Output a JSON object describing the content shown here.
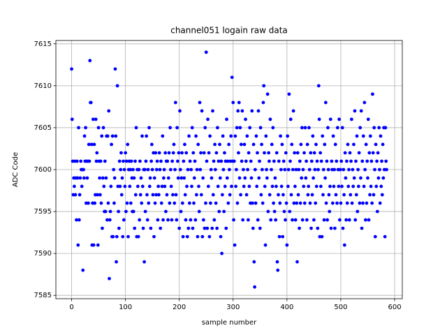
{
  "chart_data": {
    "type": "scatter",
    "title": "channel051 logain raw data",
    "x_label": "sample number",
    "y_label": "ADC Code",
    "color": "#0000ff",
    "grid": true,
    "xlim": [
      -29.25,
      614.25
    ],
    "ylim": [
      7584.6,
      7615.4
    ],
    "xticks": [
      0,
      100,
      200,
      300,
      400,
      500,
      600
    ],
    "yticks": [
      7585,
      7590,
      7595,
      7600,
      7605,
      7610,
      7615
    ],
    "x": [
      0,
      1,
      2,
      3,
      4,
      5,
      6,
      7,
      8,
      9,
      10,
      11,
      12,
      13,
      14,
      15,
      16,
      17,
      18,
      19,
      20,
      21,
      22,
      23,
      24,
      25,
      26,
      27,
      28,
      29,
      30,
      31,
      32,
      33,
      34,
      35,
      36,
      37,
      38,
      39,
      40,
      41,
      42,
      43,
      44,
      45,
      46,
      47,
      48,
      49,
      50,
      51,
      52,
      53,
      54,
      55,
      56,
      57,
      58,
      59,
      60,
      61,
      62,
      63,
      64,
      65,
      66,
      67,
      68,
      69,
      70,
      71,
      72,
      73,
      74,
      75,
      76,
      77,
      78,
      79,
      80,
      81,
      82,
      83,
      84,
      85,
      86,
      87,
      88,
      89,
      90,
      91,
      92,
      93,
      94,
      95,
      96,
      97,
      98,
      99,
      100,
      101,
      102,
      103,
      104,
      105,
      106,
      107,
      108,
      109,
      110,
      111,
      112,
      113,
      114,
      115,
      116,
      117,
      118,
      119,
      120,
      121,
      122,
      123,
      124,
      125,
      126,
      127,
      128,
      129,
      130,
      131,
      132,
      133,
      134,
      135,
      136,
      137,
      138,
      139,
      140,
      141,
      142,
      143,
      144,
      145,
      146,
      147,
      148,
      149,
      150,
      151,
      152,
      153,
      154,
      155,
      156,
      157,
      158,
      159,
      160,
      161,
      162,
      163,
      164,
      165,
      166,
      167,
      168,
      169,
      170,
      171,
      172,
      173,
      174,
      175,
      176,
      177,
      178,
      179,
      180,
      181,
      182,
      183,
      184,
      185,
      186,
      187,
      188,
      189,
      190,
      191,
      192,
      193,
      194,
      195,
      196,
      197,
      198,
      199,
      200,
      201,
      202,
      203,
      204,
      205,
      206,
      207,
      208,
      209,
      210,
      211,
      212,
      213,
      214,
      215,
      216,
      217,
      218,
      219,
      220,
      221,
      222,
      223,
      224,
      225,
      226,
      227,
      228,
      229,
      230,
      231,
      232,
      233,
      234,
      235,
      236,
      237,
      238,
      239,
      240,
      241,
      242,
      243,
      244,
      245,
      246,
      247,
      248,
      249,
      250,
      251,
      252,
      253,
      254,
      255,
      256,
      257,
      258,
      259,
      260,
      261,
      262,
      263,
      264,
      265,
      266,
      267,
      268,
      269,
      270,
      271,
      272,
      273,
      274,
      275,
      276,
      277,
      278,
      279,
      280,
      281,
      282,
      283,
      284,
      285,
      286,
      287,
      288,
      289,
      290,
      291,
      292,
      293,
      294,
      295,
      296,
      297,
      298,
      299,
      300,
      301,
      302,
      303,
      304,
      305,
      306,
      307,
      308,
      309,
      310,
      311,
      312,
      313,
      314,
      315,
      316,
      317,
      318,
      319,
      320,
      321,
      322,
      323,
      324,
      325,
      326,
      327,
      328,
      329,
      330,
      331,
      332,
      333,
      334,
      335,
      336,
      337,
      338,
      339,
      340,
      341,
      342,
      343,
      344,
      345,
      346,
      347,
      348,
      349,
      350,
      351,
      352,
      353,
      354,
      355,
      356,
      357,
      358,
      359,
      360,
      361,
      362,
      363,
      364,
      365,
      366,
      367,
      368,
      369,
      370,
      371,
      372,
      373,
      374,
      375,
      376,
      377,
      378,
      379,
      380,
      381,
      382,
      383,
      384,
      385,
      386,
      387,
      388,
      389,
      390,
      391,
      392,
      393,
      394,
      395,
      396,
      397,
      398,
      399,
      400,
      401,
      402,
      403,
      404,
      405,
      406,
      407,
      408,
      409,
      410,
      411,
      412,
      413,
      414,
      415,
      416,
      417,
      418,
      419,
      420,
      421,
      422,
      423,
      424,
      425,
      426,
      427,
      428,
      429,
      430,
      431,
      432,
      433,
      434,
      435,
      436,
      437,
      438,
      439,
      440,
      441,
      442,
      443,
      444,
      445,
      446,
      447,
      448,
      449,
      450,
      451,
      452,
      453,
      454,
      455,
      456,
      457,
      458,
      459,
      460,
      461,
      462,
      463,
      464,
      465,
      466,
      467,
      468,
      469,
      470,
      471,
      472,
      473,
      474,
      475,
      476,
      477,
      478,
      479,
      480,
      481,
      482,
      483,
      484,
      485,
      486,
      487,
      488,
      489,
      490,
      491,
      492,
      493,
      494,
      495,
      496,
      497,
      498,
      499,
      500,
      501,
      502,
      503,
      504,
      505,
      506,
      507,
      508,
      509,
      510,
      511,
      512,
      513,
      514,
      515,
      516,
      517,
      518,
      519,
      520,
      521,
      522,
      523,
      524,
      525,
      526,
      527,
      528,
      529,
      530,
      531,
      532,
      533,
      534,
      535,
      536,
      537,
      538,
      539,
      540,
      541,
      542,
      543,
      544,
      545,
      546,
      547,
      548,
      549,
      550,
      551,
      552,
      553,
      554,
      555,
      556,
      557,
      558,
      559,
      560,
      561,
      562,
      563,
      564,
      565,
      566,
      567,
      568,
      569,
      570,
      571,
      572,
      573,
      574,
      575,
      576,
      577,
      578,
      579,
      580,
      581,
      582,
      583,
      584,
      585
    ],
    "values": [
      7612,
      7606,
      7601,
      7597,
      7599,
      7598,
      7601,
      7597,
      7599,
      7594,
      7601,
      7599,
      7591,
      7605,
      7594,
      7597,
      7599,
      7601,
      7600,
      7598,
      7600,
      7588,
      7600,
      7599,
      7604,
      7601,
      7605,
      7596,
      7601,
      7599,
      7601,
      7596,
      7603,
      7601,
      7613,
      7608,
      7608,
      7603,
      7591,
      7596,
      7606,
      7591,
      7603,
      7596,
      7597,
      7606,
      7601,
      7602,
      7597,
      7591,
      7605,
      7601,
      7599,
      7597,
      7601,
      7596,
      7604,
      7593,
      7599,
      7605,
      7598,
      7595,
      7601,
      7595,
      7599,
      7604,
      7594,
      7604,
      7596,
      7607,
      7587,
      7594,
      7595,
      7598,
      7603,
      7592,
      7604,
      7592,
      7600,
      7596,
      7599,
      7612,
      7604,
      7589,
      7592,
      7610,
      7598,
      7595,
      7593,
      7601,
      7598,
      7600,
      7602,
      7597,
      7599,
      7592,
      7601,
      7594,
      7600,
      7598,
      7602,
      7595,
      7601,
      7596,
      7603,
      7592,
      7600,
      7601,
      7598,
      7600,
      7596,
      7601,
      7599,
      7595,
      7600,
      7595,
      7599,
      7593,
      7601,
      7597,
      7605,
      7592,
      7600,
      7598,
      7592,
      7600,
      7594,
      7601,
      7597,
      7599,
      7596,
      7604,
      7598,
      7593,
      7600,
      7589,
      7600,
      7595,
      7601,
      7604,
      7597,
      7594,
      7600,
      7596,
      7605,
      7598,
      7599,
      7593,
      7601,
      7603,
      7600,
      7597,
      7602,
      7592,
      7599,
      7596,
      7602,
      7597,
      7600,
      7601,
      7594,
      7598,
      7597,
      7602,
      7600,
      7593,
      7601,
      7596,
      7598,
      7604,
      7594,
      7599,
      7600,
      7598,
      7602,
      7595,
      7601,
      7597,
      7601,
      7594,
      7599,
      7602,
      7596,
      7605,
      7600,
      7598,
      7594,
      7601,
      7597,
      7602,
      7603,
      7596,
      7600,
      7608,
      7597,
      7594,
      7605,
      7601,
      7599,
      7602,
      7593,
      7607,
      7600,
      7595,
      7599,
      7602,
      7596,
      7592,
      7601,
      7599,
      7603,
      7597,
      7594,
      7602,
      7598,
      7592,
      7600,
      7593,
      7604,
      7596,
      7601,
      7594,
      7600,
      7598,
      7605,
      7593,
      7602,
      7596,
      7599,
      7601,
      7594,
      7604,
      7597,
      7600,
      7592,
      7603,
      7598,
      7595,
      7608,
      7600,
      7602,
      7597,
      7607,
      7592,
      7599,
      7594,
      7602,
      7593,
      7605,
      7596,
      7614,
      7601,
      7593,
      7606,
      7598,
      7602,
      7592,
      7604,
      7596,
      7600,
      7599,
      7593,
      7607,
      7597,
      7601,
      7594,
      7603,
      7600,
      7596,
      7602,
      7593,
      7605,
      7598,
      7601,
      7595,
      7603,
      7599,
      7592,
      7601,
      7590,
      7597,
      7604,
      7600,
      7595,
      7602,
      7598,
      7601,
      7593,
      7606,
      7599,
      7601,
      7596,
      7603,
      7600,
      7597,
      7601,
      7604,
      7598,
      7611,
      7601,
      7608,
      7594,
      7601,
      7591,
      7604,
      7598,
      7600,
      7605,
      7596,
      7607,
      7602,
      7608,
      7599,
      7605,
      7597,
      7603,
      7601,
      7607,
      7594,
      7600,
      7598,
      7603,
      7599,
      7606,
      7601,
      7597,
      7604,
      7600,
      7594,
      7602,
      7598,
      7605,
      7596,
      7601,
      7599,
      7607,
      7596,
      7593,
      7603,
      7589,
      7586,
      7600,
      7596,
      7604,
      7598,
      7602,
      7594,
      7607,
      7599,
      7601,
      7593,
      7605,
      7597,
      7603,
      7600,
      7596,
      7608,
      7610,
      7602,
      7598,
      7591,
      7604,
      7600,
      7599,
      7609,
      7595,
      7602,
      7601,
      7597,
      7606,
      7594,
      7600,
      7603,
      7598,
      7605,
      7596,
      7601,
      7595,
      7599,
      7594,
      7598,
      7602,
      7589,
      7588,
      7597,
      7601,
      7592,
      7596,
      7604,
      7600,
      7598,
      7603,
      7592,
      7597,
      7601,
      7595,
      7600,
      7594,
      7602,
      7596,
      7591,
      7604,
      7598,
      7600,
      7609,
      7595,
      7601,
      7606,
      7597,
      7603,
      7594,
      7600,
      7607,
      7596,
      7602,
      7598,
      7594,
      7600,
      7596,
      7589,
      7602,
      7597,
      7600,
      7593,
      7601,
      7596,
      7603,
      7599,
      7605,
      7594,
      7600,
      7598,
      7602,
      7596,
      7605,
      7599,
      7601,
      7594,
      7603,
      7597,
      7598,
      7605,
      7600,
      7596,
      7602,
      7593,
      7601,
      7597,
      7604,
      7599,
      7594,
      7602,
      7600,
      7596,
      7603,
      7598,
      7601,
      7593,
      7600,
      7610,
      7606,
      7592,
      7602,
      7598,
      7601,
      7592,
      7604,
      7597,
      7600,
      7594,
      7603,
      7599,
      7608,
      7596,
      7601,
      7594,
      7605,
      7600,
      7597,
      7595,
      7598,
      7606,
      7593,
      7601,
      7600,
      7596,
      7604,
      7598,
      7600,
      7593,
      7603,
      7597,
      7601,
      7596,
      7605,
      7600,
      7598,
      7606,
      7594,
      7600,
      7596,
      7601,
      7598,
      7605,
      7593,
      7600,
      7597,
      7591,
      7602,
      7599,
      7594,
      7601,
      7596,
      7603,
      7598,
      7600,
      7594,
      7602,
      7597,
      7601,
      7606,
      7596,
      7600,
      7598,
      7603,
      7599,
      7607,
      7594,
      7601,
      7597,
      7604,
      7595,
      7600,
      7598,
      7602,
      7596,
      7605,
      7599,
      7607,
      7593,
      7601,
      7596,
      7604,
      7598,
      7608,
      7600,
      7594,
      7603,
      7596,
      7601,
      7599,
      7606,
      7594,
      7602,
      7597,
      7604,
      7598,
      7601,
      7596,
      7609,
      7602,
      7597,
      7605,
      7600,
      7592,
      7603,
      7598,
      7601,
      7595,
      7602,
      7599,
      7605,
      7600,
      7596,
      7604,
      7598,
      7601,
      7597,
      7603,
      7599,
      7605,
      7600,
      7592,
      7605,
      7601,
      7600
    ]
  }
}
